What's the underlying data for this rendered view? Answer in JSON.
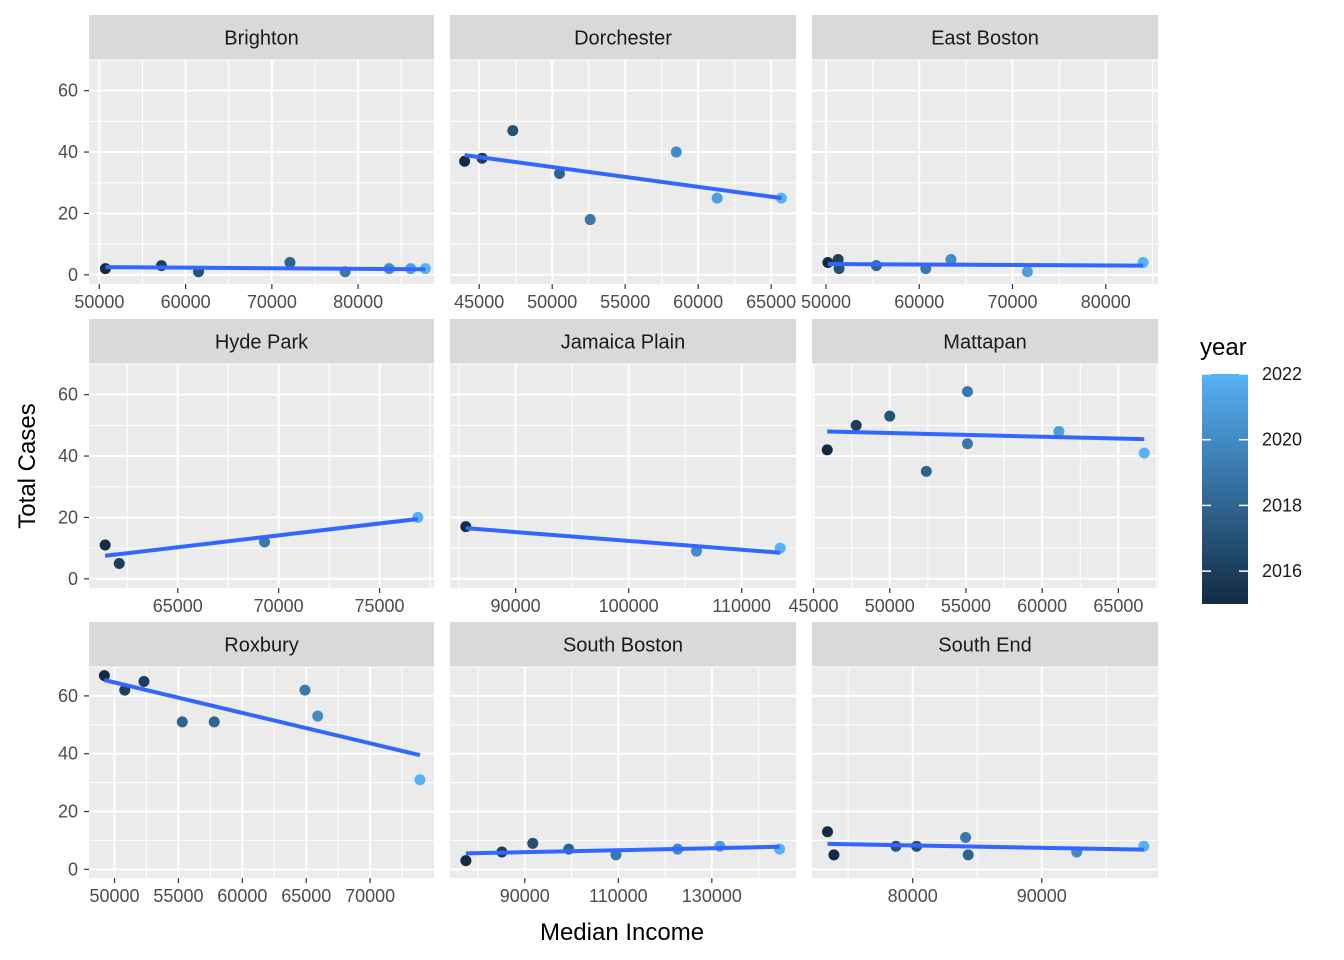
{
  "chart_data": {
    "type": "scatter",
    "facet_variable": "neighborhood",
    "xlabel": "Median Income",
    "ylabel": "Total Cases",
    "ylim": [
      -3,
      70
    ],
    "y_ticks": [
      0,
      20,
      40,
      60
    ],
    "grid": true,
    "scales_x": "free",
    "color_legend": {
      "title": "year",
      "position": "right",
      "range": [
        2015,
        2022
      ],
      "ticks": [
        2016,
        2018,
        2020,
        2022
      ],
      "low_color": "#132B43",
      "high_color": "#56B1F7"
    },
    "trend_line_color": "#3366FF",
    "panels": [
      {
        "name": "Brighton",
        "xlim": [
          48800,
          88800
        ],
        "x_ticks": [
          50000,
          60000,
          70000,
          80000
        ],
        "points": [
          {
            "x": 50700,
            "y": 2,
            "year": 2015
          },
          {
            "x": 57200,
            "y": 3,
            "year": 2016
          },
          {
            "x": 61500,
            "y": 1,
            "year": 2017
          },
          {
            "x": 72100,
            "y": 4,
            "year": 2018
          },
          {
            "x": 78500,
            "y": 1,
            "year": 2019
          },
          {
            "x": 83600,
            "y": 2,
            "year": 2020
          },
          {
            "x": 86100,
            "y": 2,
            "year": 2021
          },
          {
            "x": 87800,
            "y": 2,
            "year": 2022
          }
        ],
        "trend": {
          "x": [
            50700,
            87800
          ],
          "y": [
            2.5,
            1.8
          ]
        }
      },
      {
        "name": "Dorchester",
        "xlim": [
          43000,
          66700
        ],
        "x_ticks": [
          45000,
          50000,
          55000,
          60000,
          65000
        ],
        "points": [
          {
            "x": 44000,
            "y": 37,
            "year": 2015
          },
          {
            "x": 45200,
            "y": 38,
            "year": 2016
          },
          {
            "x": 47300,
            "y": 47,
            "year": 2017
          },
          {
            "x": 50500,
            "y": 33,
            "year": 2018
          },
          {
            "x": 52600,
            "y": 18,
            "year": 2019
          },
          {
            "x": 58500,
            "y": 40,
            "year": 2020
          },
          {
            "x": 61300,
            "y": 25,
            "year": 2021
          },
          {
            "x": 65700,
            "y": 25,
            "year": 2022
          }
        ],
        "trend": {
          "x": [
            44000,
            65700
          ],
          "y": [
            39,
            25
          ]
        }
      },
      {
        "name": "East Boston",
        "xlim": [
          48500,
          85600
        ],
        "x_ticks": [
          50000,
          60000,
          70000,
          80000
        ],
        "points": [
          {
            "x": 50200,
            "y": 4,
            "year": 2015
          },
          {
            "x": 51300,
            "y": 5,
            "year": 2016
          },
          {
            "x": 51400,
            "y": 2,
            "year": 2017
          },
          {
            "x": 55400,
            "y": 3,
            "year": 2018
          },
          {
            "x": 60700,
            "y": 2,
            "year": 2019
          },
          {
            "x": 63400,
            "y": 5,
            "year": 2020
          },
          {
            "x": 71600,
            "y": 1,
            "year": 2021
          },
          {
            "x": 84000,
            "y": 4,
            "year": 2022
          }
        ],
        "trend": {
          "x": [
            50200,
            84000
          ],
          "y": [
            3.5,
            3.0
          ]
        }
      },
      {
        "name": "Hyde Park",
        "xlim": [
          60600,
          77700
        ],
        "x_ticks": [
          65000,
          70000,
          75000
        ],
        "points": [
          {
            "x": 61400,
            "y": 11,
            "year": 2015
          },
          {
            "x": 62100,
            "y": 5,
            "year": 2016
          },
          {
            "x": 69300,
            "y": 12,
            "year": 2019
          },
          {
            "x": 76900,
            "y": 20,
            "year": 2022
          }
        ],
        "trend": {
          "x": [
            61400,
            76900
          ],
          "y": [
            7.5,
            19.5
          ]
        }
      },
      {
        "name": "Jamaica Plain",
        "xlim": [
          84200,
          114800
        ],
        "x_ticks": [
          90000,
          100000,
          110000
        ],
        "points": [
          {
            "x": 85600,
            "y": 17,
            "year": 2015
          },
          {
            "x": 106000,
            "y": 9,
            "year": 2020
          },
          {
            "x": 113400,
            "y": 10,
            "year": 2022
          }
        ],
        "trend": {
          "x": [
            85600,
            113400
          ],
          "y": [
            16.5,
            8.5
          ]
        }
      },
      {
        "name": "Mattapan",
        "xlim": [
          44900,
          67600
        ],
        "x_ticks": [
          45000,
          50000,
          55000,
          60000,
          65000
        ],
        "points": [
          {
            "x": 45900,
            "y": 42,
            "year": 2015
          },
          {
            "x": 47800,
            "y": 50,
            "year": 2016
          },
          {
            "x": 50000,
            "y": 53,
            "year": 2017
          },
          {
            "x": 52400,
            "y": 35,
            "year": 2018
          },
          {
            "x": 55100,
            "y": 61,
            "year": 2019
          },
          {
            "x": 55100,
            "y": 44,
            "year": 2019
          },
          {
            "x": 61100,
            "y": 48,
            "year": 2021
          },
          {
            "x": 66700,
            "y": 41,
            "year": 2022
          }
        ],
        "trend": {
          "x": [
            45900,
            66700
          ],
          "y": [
            48,
            45.5
          ]
        }
      },
      {
        "name": "Roxbury",
        "xlim": [
          48000,
          75000
        ],
        "x_ticks": [
          50000,
          55000,
          60000,
          65000,
          70000
        ],
        "points": [
          {
            "x": 49200,
            "y": 67,
            "year": 2015
          },
          {
            "x": 50800,
            "y": 62,
            "year": 2016
          },
          {
            "x": 52300,
            "y": 65,
            "year": 2016
          },
          {
            "x": 55300,
            "y": 51,
            "year": 2018
          },
          {
            "x": 57800,
            "y": 51,
            "year": 2018
          },
          {
            "x": 64900,
            "y": 62,
            "year": 2019
          },
          {
            "x": 65900,
            "y": 53,
            "year": 2020
          },
          {
            "x": 73900,
            "y": 31,
            "year": 2022
          }
        ],
        "trend": {
          "x": [
            49200,
            73900
          ],
          "y": [
            65.5,
            39.5
          ]
        }
      },
      {
        "name": "South Boston",
        "xlim": [
          74000,
          148000
        ],
        "x_ticks": [
          90000,
          110000,
          130000
        ],
        "points": [
          {
            "x": 77400,
            "y": 3,
            "year": 2015
          },
          {
            "x": 85100,
            "y": 6,
            "year": 2016
          },
          {
            "x": 91700,
            "y": 9,
            "year": 2017
          },
          {
            "x": 99400,
            "y": 7,
            "year": 2018
          },
          {
            "x": 109500,
            "y": 5,
            "year": 2019
          },
          {
            "x": 122700,
            "y": 7,
            "year": 2020
          },
          {
            "x": 131700,
            "y": 8,
            "year": 2021
          },
          {
            "x": 144500,
            "y": 7,
            "year": 2022
          }
        ],
        "trend": {
          "x": [
            77400,
            144500
          ],
          "y": [
            5.5,
            7.8
          ]
        }
      },
      {
        "name": "South End",
        "xlim": [
          72200,
          99000
        ],
        "x_ticks": [
          80000,
          90000
        ],
        "points": [
          {
            "x": 73400,
            "y": 13,
            "year": 2015
          },
          {
            "x": 73900,
            "y": 5,
            "year": 2015
          },
          {
            "x": 78700,
            "y": 8,
            "year": 2017
          },
          {
            "x": 80300,
            "y": 8,
            "year": 2017
          },
          {
            "x": 84100,
            "y": 11,
            "year": 2019
          },
          {
            "x": 84300,
            "y": 5,
            "year": 2018
          },
          {
            "x": 92700,
            "y": 6,
            "year": 2020
          },
          {
            "x": 97900,
            "y": 8,
            "year": 2022
          }
        ],
        "trend": {
          "x": [
            73400,
            97900
          ],
          "y": [
            8.8,
            6.8
          ]
        }
      }
    ]
  }
}
